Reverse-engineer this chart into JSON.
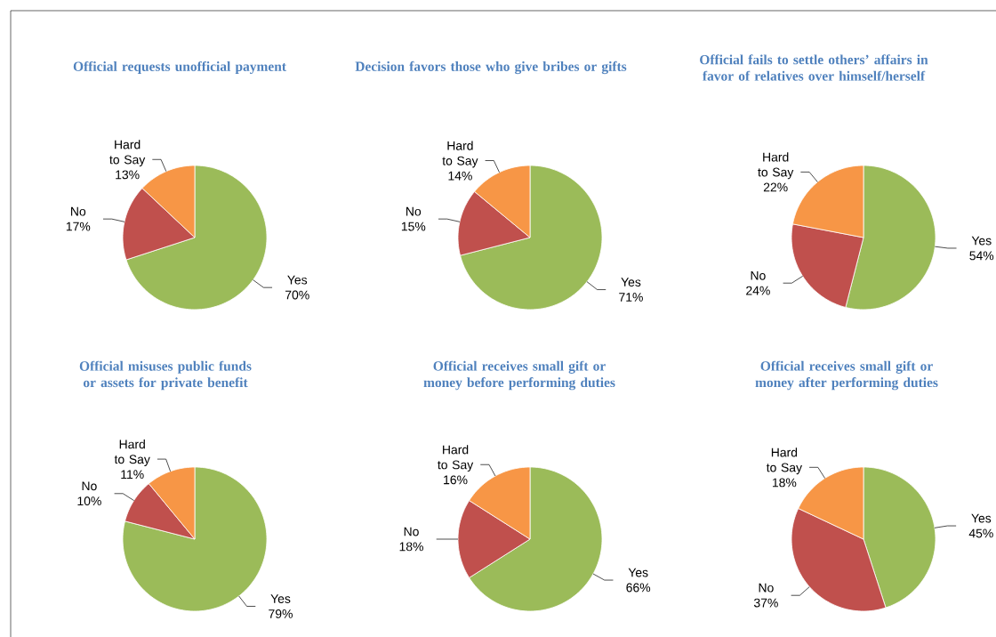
{
  "chart_data": [
    {
      "type": "pie",
      "title": "Official requests unofficial payment",
      "categories": [
        "Yes",
        "No",
        "Hard to Say"
      ],
      "values": [
        70,
        17,
        13
      ],
      "value_labels": [
        "70%",
        "17%",
        "13%"
      ],
      "colors": [
        "#9bbb59",
        "#c0504d",
        "#f79646"
      ]
    },
    {
      "type": "pie",
      "title": "Decision favors those who give bribes or gifts",
      "categories": [
        "Yes",
        "No",
        "Hard to Say"
      ],
      "values": [
        71,
        15,
        14
      ],
      "value_labels": [
        "71%",
        "15%",
        "14%"
      ],
      "colors": [
        "#9bbb59",
        "#c0504d",
        "#f79646"
      ]
    },
    {
      "type": "pie",
      "title": "Official fails to settle others’ affairs in favor of relatives over himself/herself",
      "categories": [
        "Yes",
        "No",
        "Hard to Say"
      ],
      "values": [
        54,
        24,
        22
      ],
      "value_labels": [
        "54%",
        "24%",
        "22%"
      ],
      "colors": [
        "#9bbb59",
        "#c0504d",
        "#f79646"
      ]
    },
    {
      "type": "pie",
      "title": "Official misuses public funds or assets for private benefit",
      "categories": [
        "Yes",
        "No",
        "Hard to Say"
      ],
      "values": [
        79,
        10,
        11
      ],
      "value_labels": [
        "79%",
        "10%",
        "11%"
      ],
      "colors": [
        "#9bbb59",
        "#c0504d",
        "#f79646"
      ]
    },
    {
      "type": "pie",
      "title": "Official receives small gift or money before performing duties",
      "categories": [
        "Yes",
        "No",
        "Hard to Say"
      ],
      "values": [
        66,
        18,
        16
      ],
      "value_labels": [
        "66%",
        "18%",
        "16%"
      ],
      "colors": [
        "#9bbb59",
        "#c0504d",
        "#f79646"
      ]
    },
    {
      "type": "pie",
      "title": "Official receives small gift or money after performing duties",
      "categories": [
        "Yes",
        "No",
        "Hard to Say"
      ],
      "values": [
        45,
        37,
        18
      ],
      "value_labels": [
        "45%",
        "37%",
        "18%"
      ],
      "colors": [
        "#9bbb59",
        "#c0504d",
        "#f79646"
      ]
    }
  ]
}
